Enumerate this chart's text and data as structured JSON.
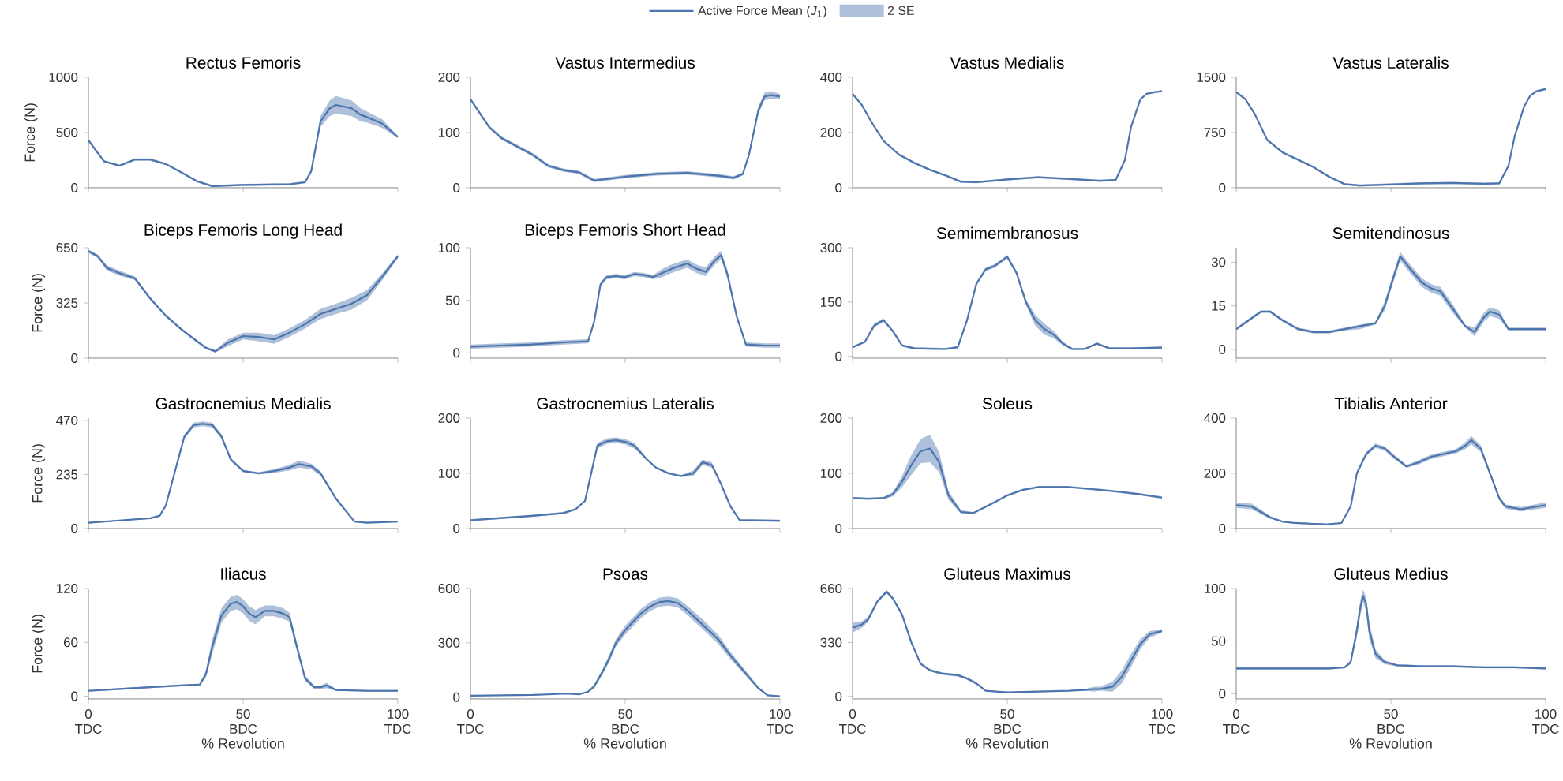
{
  "chart_data": [
    {
      "type": "line",
      "title": "Rectus Femoris",
      "ylabel": "Force (N)",
      "legend": "top",
      "annotations": [
        "2 SE"
      ],
      "xlim": [
        0,
        100
      ],
      "xticks": [
        0,
        50,
        100
      ],
      "ylim": [
        0,
        1000
      ],
      "yticks": [
        0,
        500,
        1000
      ],
      "tick_labels": "y",
      "series": [
        {
          "name": "Active Force Mean (*J*$_{1}$)",
          "color": "#4c74ad",
          "x": [
            0,
            5,
            10,
            15,
            20,
            25,
            30,
            35,
            40,
            45,
            50,
            55,
            60,
            65,
            70,
            72,
            75,
            78,
            80,
            85,
            88,
            90,
            95,
            100
          ],
          "values": [
            430,
            240,
            200,
            255,
            255,
            215,
            140,
            60,
            15,
            20,
            25,
            28,
            30,
            32,
            50,
            150,
            600,
            720,
            750,
            720,
            660,
            640,
            580,
            460
          ],
          "lower": [
            420,
            230,
            190,
            245,
            245,
            205,
            130,
            50,
            5,
            10,
            15,
            18,
            20,
            22,
            40,
            130,
            550,
            650,
            670,
            650,
            600,
            590,
            540,
            450
          ],
          "upper": [
            440,
            250,
            210,
            265,
            265,
            225,
            150,
            70,
            25,
            30,
            35,
            38,
            40,
            42,
            60,
            170,
            650,
            790,
            830,
            790,
            720,
            690,
            620,
            470
          ]
        }
      ]
    },
    {
      "type": "line",
      "title": "Vastus Intermedius",
      "xlim": [
        0,
        100
      ],
      "xticks": [
        0,
        50,
        100
      ],
      "ylim": [
        0,
        200
      ],
      "yticks": [
        0,
        100,
        200
      ],
      "tick_labels": "y",
      "series": [
        {
          "color": "#4c74ad",
          "x": [
            0,
            3,
            6,
            10,
            15,
            20,
            25,
            30,
            35,
            40,
            50,
            60,
            70,
            80,
            85,
            88,
            90,
            93,
            95,
            97,
            100
          ],
          "values": [
            160,
            135,
            110,
            90,
            75,
            60,
            40,
            32,
            28,
            13,
            20,
            25,
            27,
            22,
            18,
            25,
            60,
            140,
            165,
            168,
            165
          ],
          "lower": [
            157,
            132,
            107,
            87,
            72,
            57,
            37,
            29,
            25,
            10,
            17,
            22,
            24,
            19,
            15,
            22,
            55,
            133,
            158,
            161,
            160
          ],
          "upper": [
            163,
            138,
            113,
            93,
            78,
            63,
            43,
            35,
            31,
            16,
            23,
            28,
            30,
            25,
            21,
            28,
            65,
            147,
            172,
            175,
            170
          ]
        }
      ]
    },
    {
      "type": "line",
      "title": "Vastus Medialis",
      "xlim": [
        0,
        100
      ],
      "xticks": [
        0,
        50,
        100
      ],
      "ylim": [
        0,
        400
      ],
      "yticks": [
        0,
        200,
        400
      ],
      "tick_labels": "y",
      "series": [
        {
          "color": "#4c74ad",
          "x": [
            0,
            3,
            6,
            10,
            15,
            20,
            25,
            30,
            35,
            40,
            50,
            60,
            70,
            80,
            85,
            88,
            90,
            93,
            95,
            97,
            100
          ],
          "values": [
            340,
            300,
            240,
            170,
            120,
            90,
            65,
            45,
            22,
            20,
            30,
            38,
            32,
            25,
            28,
            100,
            220,
            320,
            340,
            345,
            350
          ],
          "lower": [
            336,
            296,
            236,
            166,
            116,
            86,
            61,
            41,
            18,
            16,
            26,
            34,
            28,
            21,
            24,
            96,
            216,
            316,
            336,
            341,
            346
          ],
          "upper": [
            344,
            304,
            244,
            174,
            124,
            94,
            69,
            49,
            26,
            24,
            34,
            42,
            36,
            29,
            32,
            104,
            224,
            324,
            344,
            349,
            354
          ]
        }
      ]
    },
    {
      "type": "line",
      "title": "Vastus Lateralis",
      "xlim": [
        0,
        100
      ],
      "xticks": [
        0,
        50,
        100
      ],
      "ylim": [
        0,
        1500
      ],
      "yticks": [
        0,
        750,
        1500
      ],
      "tick_labels": "y",
      "series": [
        {
          "color": "#4c74ad",
          "x": [
            0,
            3,
            6,
            10,
            15,
            20,
            25,
            30,
            35,
            40,
            50,
            60,
            70,
            80,
            85,
            88,
            90,
            93,
            95,
            97,
            100
          ],
          "values": [
            1300,
            1200,
            1000,
            650,
            480,
            380,
            280,
            150,
            50,
            30,
            45,
            60,
            65,
            55,
            60,
            300,
            700,
            1100,
            1250,
            1310,
            1340
          ],
          "lower": [
            1285,
            1185,
            985,
            635,
            465,
            365,
            265,
            135,
            35,
            15,
            30,
            45,
            50,
            40,
            45,
            285,
            685,
            1085,
            1235,
            1295,
            1325
          ],
          "upper": [
            1315,
            1215,
            1015,
            665,
            495,
            395,
            295,
            165,
            65,
            45,
            60,
            75,
            80,
            70,
            75,
            315,
            715,
            1115,
            1265,
            1325,
            1355
          ]
        }
      ]
    },
    {
      "type": "line",
      "title": "Biceps Femoris Long Head",
      "ylabel": "Force (N)",
      "xlim": [
        0,
        100
      ],
      "xticks": [
        0,
        50,
        100
      ],
      "ylim": [
        0,
        650
      ],
      "yticks": [
        0,
        325,
        650
      ],
      "tick_labels": "y",
      "series": [
        {
          "color": "#4c74ad",
          "x": [
            0,
            3,
            6,
            10,
            15,
            20,
            25,
            30,
            35,
            38,
            41,
            45,
            50,
            55,
            60,
            65,
            70,
            75,
            80,
            85,
            90,
            95,
            100
          ],
          "values": [
            630,
            600,
            530,
            500,
            470,
            350,
            250,
            170,
            100,
            60,
            40,
            90,
            130,
            125,
            110,
            150,
            200,
            260,
            290,
            320,
            370,
            480,
            600
          ],
          "lower": [
            620,
            590,
            515,
            485,
            460,
            340,
            242,
            162,
            92,
            52,
            32,
            70,
            110,
            100,
            85,
            125,
            175,
            230,
            260,
            285,
            340,
            460,
            590
          ],
          "upper": [
            640,
            610,
            545,
            515,
            480,
            360,
            258,
            178,
            108,
            68,
            48,
            110,
            150,
            150,
            135,
            175,
            225,
            290,
            320,
            355,
            400,
            500,
            610
          ]
        }
      ]
    },
    {
      "type": "line",
      "title": "Biceps Femoris Short Head",
      "xlim": [
        0,
        100
      ],
      "xticks": [
        0,
        50,
        100
      ],
      "ylim": [
        -5,
        100
      ],
      "yticks": [
        0,
        50,
        100
      ],
      "tick_labels": "y",
      "series": [
        {
          "color": "#4c74ad",
          "x": [
            0,
            10,
            20,
            30,
            38,
            40,
            42,
            44,
            47,
            50,
            53,
            56,
            59,
            62,
            65,
            70,
            73,
            76,
            79,
            81,
            83,
            86,
            89,
            95,
            100
          ],
          "values": [
            6,
            7,
            8,
            10,
            11,
            30,
            65,
            72,
            73,
            72,
            75,
            74,
            72,
            76,
            80,
            85,
            80,
            77,
            88,
            93,
            75,
            35,
            8,
            7,
            7
          ],
          "lower": [
            4,
            5,
            6,
            8,
            9,
            28,
            63,
            70,
            71,
            70,
            73,
            72,
            70,
            72,
            76,
            81,
            76,
            73,
            84,
            89,
            71,
            33,
            6,
            5,
            5
          ],
          "upper": [
            8,
            9,
            10,
            12,
            13,
            32,
            67,
            74,
            75,
            74,
            77,
            76,
            74,
            80,
            84,
            89,
            84,
            81,
            92,
            97,
            79,
            37,
            10,
            9,
            9
          ]
        }
      ]
    },
    {
      "type": "line",
      "title": "Semimembranosus",
      "xlim": [
        0,
        100
      ],
      "xticks": [
        0,
        50,
        100
      ],
      "ylim": [
        -5,
        300
      ],
      "yticks": [
        0,
        150,
        300
      ],
      "tick_labels": "y",
      "series": [
        {
          "color": "#4c74ad",
          "x": [
            0,
            4,
            7,
            10,
            13,
            16,
            20,
            30,
            34,
            37,
            40,
            43,
            46,
            50,
            53,
            56,
            59,
            62,
            65,
            68,
            71,
            75,
            79,
            83,
            90,
            100
          ],
          "values": [
            25,
            40,
            85,
            100,
            70,
            30,
            22,
            20,
            25,
            100,
            200,
            240,
            250,
            275,
            230,
            150,
            100,
            75,
            60,
            35,
            20,
            20,
            35,
            22,
            22,
            24
          ],
          "lower": [
            22,
            37,
            80,
            95,
            67,
            27,
            19,
            17,
            22,
            95,
            195,
            235,
            245,
            270,
            225,
            142,
            85,
            60,
            50,
            30,
            17,
            17,
            32,
            19,
            19,
            21
          ],
          "upper": [
            28,
            43,
            90,
            105,
            73,
            33,
            25,
            23,
            28,
            105,
            205,
            245,
            255,
            280,
            235,
            158,
            115,
            90,
            70,
            40,
            23,
            23,
            38,
            25,
            25,
            27
          ]
        }
      ]
    },
    {
      "type": "line",
      "title": "Semitendinosus",
      "xlim": [
        0,
        100
      ],
      "xticks": [
        0,
        50,
        100
      ],
      "ylim": [
        -3,
        35
      ],
      "yticks": [
        0,
        15,
        30
      ],
      "tick_labels": "y",
      "series": [
        {
          "color": "#4c74ad",
          "x": [
            0,
            4,
            8,
            11,
            15,
            20,
            25,
            30,
            35,
            40,
            45,
            48,
            50,
            53,
            56,
            60,
            63,
            66,
            70,
            74,
            77,
            80,
            82,
            85,
            88,
            100
          ],
          "values": [
            7,
            10,
            13,
            13,
            10,
            7,
            6,
            6,
            7,
            8,
            9,
            15,
            22,
            32,
            28,
            23,
            21,
            20,
            14,
            8,
            6,
            11,
            13,
            12,
            7,
            7
          ],
          "lower": [
            6.5,
            9.5,
            12.5,
            12.5,
            9.5,
            6.5,
            5.5,
            5.5,
            6.5,
            7,
            8.5,
            13.5,
            20.5,
            30.5,
            26.5,
            21.5,
            19.5,
            18.5,
            12.5,
            7.5,
            4.5,
            9.5,
            11.5,
            10.5,
            6.5,
            6.5
          ],
          "upper": [
            7.5,
            10.5,
            13.5,
            13.5,
            10.5,
            7.5,
            6.5,
            6.5,
            7.5,
            8.5,
            9.5,
            16.5,
            23.5,
            33.5,
            29.5,
            24.5,
            22.5,
            21.5,
            15.5,
            8.5,
            7.5,
            12.5,
            14.5,
            13.5,
            7.5,
            7.5
          ]
        }
      ]
    },
    {
      "type": "line",
      "title": "Gastrocnemius Medialis",
      "ylabel": "Force (N)",
      "xlim": [
        0,
        100
      ],
      "xticks": [
        0,
        50,
        100
      ],
      "ylim": [
        0,
        480
      ],
      "yticks": [
        0,
        235,
        470
      ],
      "tick_labels": "y",
      "series": [
        {
          "color": "#4c74ad",
          "x": [
            0,
            10,
            20,
            23,
            25,
            28,
            31,
            34,
            37,
            40,
            43,
            46,
            50,
            55,
            60,
            65,
            68,
            72,
            75,
            80,
            86,
            90,
            100
          ],
          "values": [
            25,
            35,
            45,
            55,
            100,
            250,
            400,
            450,
            455,
            450,
            400,
            300,
            250,
            240,
            250,
            265,
            280,
            270,
            240,
            130,
            30,
            25,
            30
          ],
          "lower": [
            22,
            32,
            42,
            52,
            95,
            242,
            390,
            440,
            445,
            440,
            390,
            292,
            245,
            235,
            242,
            253,
            265,
            258,
            230,
            125,
            27,
            22,
            27
          ],
          "upper": [
            28,
            38,
            48,
            58,
            105,
            258,
            410,
            460,
            465,
            460,
            410,
            308,
            255,
            245,
            258,
            277,
            295,
            282,
            250,
            135,
            33,
            28,
            33
          ]
        }
      ]
    },
    {
      "type": "line",
      "title": "Gastrocnemius Lateralis",
      "xlim": [
        0,
        100
      ],
      "xticks": [
        0,
        50,
        100
      ],
      "ylim": [
        0,
        200
      ],
      "yticks": [
        0,
        100,
        200
      ],
      "tick_labels": "y",
      "series": [
        {
          "color": "#4c74ad",
          "x": [
            0,
            10,
            20,
            30,
            34,
            37,
            39,
            41,
            44,
            47,
            50,
            53,
            57,
            60,
            64,
            68,
            72,
            75,
            78,
            81,
            84,
            87,
            100
          ],
          "values": [
            15,
            19,
            23,
            28,
            35,
            50,
            100,
            150,
            158,
            160,
            157,
            150,
            125,
            110,
            100,
            95,
            100,
            120,
            115,
            80,
            40,
            15,
            14
          ],
          "lower": [
            13,
            17,
            21,
            26,
            33,
            48,
            95,
            145,
            153,
            155,
            152,
            145,
            123,
            108,
            98,
            93,
            95,
            115,
            110,
            78,
            38,
            13,
            12
          ],
          "upper": [
            17,
            21,
            25,
            30,
            37,
            52,
            105,
            155,
            163,
            165,
            162,
            155,
            127,
            112,
            102,
            97,
            105,
            125,
            120,
            82,
            42,
            17,
            16
          ]
        }
      ]
    },
    {
      "type": "line",
      "title": "Soleus",
      "xlim": [
        0,
        100
      ],
      "xticks": [
        0,
        50,
        100
      ],
      "ylim": [
        0,
        200
      ],
      "yticks": [
        0,
        100,
        200
      ],
      "tick_labels": "y",
      "series": [
        {
          "color": "#4c74ad",
          "x": [
            0,
            5,
            10,
            13,
            16,
            19,
            22,
            25,
            28,
            31,
            35,
            39,
            45,
            50,
            55,
            60,
            70,
            80,
            87,
            93,
            100
          ],
          "values": [
            55,
            54,
            55,
            62,
            85,
            115,
            140,
            145,
            120,
            60,
            30,
            28,
            45,
            60,
            70,
            75,
            75,
            70,
            66,
            62,
            56
          ],
          "lower": [
            53,
            52,
            53,
            58,
            75,
            97,
            118,
            120,
            102,
            52,
            27,
            26,
            43,
            58,
            68,
            73,
            73,
            68,
            64,
            60,
            54
          ],
          "upper": [
            57,
            56,
            57,
            66,
            95,
            133,
            162,
            170,
            138,
            68,
            33,
            30,
            47,
            62,
            72,
            77,
            77,
            72,
            68,
            64,
            58
          ]
        }
      ]
    },
    {
      "type": "line",
      "title": "Tibialis Anterior",
      "xlim": [
        0,
        100
      ],
      "xticks": [
        0,
        50,
        100
      ],
      "ylim": [
        0,
        400
      ],
      "yticks": [
        0,
        200,
        400
      ],
      "tick_labels": "y",
      "series": [
        {
          "color": "#4c74ad",
          "x": [
            0,
            5,
            8,
            11,
            15,
            19,
            25,
            29,
            34,
            37,
            39,
            42,
            45,
            48,
            51,
            55,
            59,
            63,
            67,
            71,
            74,
            76,
            79,
            82,
            85,
            87,
            92,
            100
          ],
          "values": [
            85,
            80,
            60,
            40,
            25,
            20,
            17,
            15,
            20,
            80,
            200,
            270,
            300,
            290,
            260,
            225,
            240,
            260,
            270,
            280,
            300,
            320,
            290,
            200,
            110,
            80,
            70,
            85
          ],
          "lower": [
            75,
            70,
            52,
            35,
            22,
            17,
            14,
            12,
            17,
            75,
            192,
            262,
            292,
            282,
            252,
            220,
            232,
            252,
            262,
            272,
            288,
            305,
            278,
            192,
            102,
            72,
            62,
            75
          ],
          "upper": [
            95,
            90,
            68,
            45,
            28,
            23,
            20,
            18,
            23,
            85,
            208,
            278,
            308,
            298,
            268,
            230,
            248,
            268,
            278,
            288,
            312,
            335,
            302,
            208,
            118,
            88,
            78,
            95
          ]
        }
      ]
    },
    {
      "type": "line",
      "title": "Iliacus",
      "ylabel": "Force (N)",
      "xlabel": "% Revolution",
      "xlim": [
        0,
        100
      ],
      "xticks": [
        {
          "value": 0,
          "label": "0 TDC"
        },
        {
          "value": 50,
          "label": "50 BDC"
        },
        {
          "value": 100,
          "label": "100 TDC"
        }
      ],
      "ylim": [
        -3,
        120
      ],
      "yticks": [
        0,
        60,
        120
      ],
      "series": [
        {
          "color": "#4c74ad",
          "x": [
            0,
            10,
            20,
            30,
            36,
            38,
            40,
            43,
            46,
            48,
            50,
            52,
            54,
            57,
            60,
            63,
            65,
            67,
            70,
            73,
            75,
            77,
            80,
            90,
            100
          ],
          "values": [
            6,
            8,
            10,
            12,
            13,
            25,
            55,
            90,
            103,
            105,
            100,
            92,
            88,
            95,
            95,
            92,
            88,
            60,
            20,
            10,
            10,
            12,
            7,
            6,
            6
          ],
          "lower": [
            5,
            7,
            9,
            11,
            12,
            21,
            47,
            82,
            95,
            97,
            92,
            84,
            80,
            89,
            89,
            86,
            83,
            55,
            17,
            8,
            8,
            9,
            6,
            5,
            5
          ],
          "upper": [
            7,
            9,
            11,
            13,
            14,
            29,
            63,
            98,
            111,
            113,
            108,
            100,
            96,
            101,
            101,
            98,
            93,
            65,
            23,
            12,
            12,
            15,
            8,
            7,
            7
          ]
        }
      ]
    },
    {
      "type": "line",
      "title": "Psoas",
      "xlabel": "% Revolution",
      "xlim": [
        0,
        100
      ],
      "xticks": [
        {
          "value": 0,
          "label": "0 TDC"
        },
        {
          "value": 50,
          "label": "50 BDC"
        },
        {
          "value": 100,
          "label": "100 TDC"
        }
      ],
      "ylim": [
        -10,
        600
      ],
      "yticks": [
        0,
        300,
        600
      ],
      "series": [
        {
          "color": "#4c74ad",
          "x": [
            0,
            10,
            20,
            25,
            31,
            35,
            38,
            40,
            43,
            45,
            47,
            50,
            55,
            58,
            61,
            64,
            67,
            70,
            75,
            80,
            84,
            88,
            90,
            93,
            96,
            100
          ],
          "values": [
            8,
            10,
            12,
            15,
            20,
            15,
            30,
            60,
            150,
            220,
            300,
            370,
            460,
            500,
            525,
            530,
            520,
            480,
            400,
            320,
            230,
            150,
            110,
            50,
            10,
            5
          ],
          "lower": [
            6,
            8,
            10,
            13,
            17,
            12,
            25,
            50,
            135,
            200,
            280,
            345,
            435,
            475,
            500,
            505,
            495,
            455,
            375,
            295,
            210,
            135,
            98,
            42,
            7,
            3
          ],
          "upper": [
            10,
            12,
            14,
            17,
            23,
            18,
            35,
            70,
            165,
            240,
            320,
            395,
            485,
            525,
            550,
            555,
            545,
            505,
            430,
            345,
            250,
            165,
            122,
            58,
            13,
            7
          ]
        }
      ]
    },
    {
      "type": "line",
      "title": "Gluteus Maximus",
      "xlabel": "% Revolution",
      "xlim": [
        0,
        100
      ],
      "xticks": [
        {
          "value": 0,
          "label": "0 TDC"
        },
        {
          "value": 50,
          "label": "50 BDC"
        },
        {
          "value": 100,
          "label": "100 TDC"
        }
      ],
      "ylim": [
        -15,
        660
      ],
      "yticks": [
        0,
        330,
        660
      ],
      "series": [
        {
          "color": "#4c74ad",
          "x": [
            0,
            3,
            5,
            8,
            11,
            13,
            16,
            19,
            22,
            25,
            29,
            34,
            37,
            40,
            43,
            50,
            60,
            70,
            75,
            78,
            80,
            84,
            87,
            90,
            93,
            96,
            100
          ],
          "values": [
            420,
            440,
            470,
            580,
            640,
            600,
            500,
            330,
            200,
            160,
            140,
            130,
            110,
            80,
            35,
            25,
            30,
            35,
            40,
            45,
            45,
            60,
            120,
            220,
            320,
            380,
            400
          ],
          "lower": [
            390,
            420,
            455,
            570,
            630,
            590,
            490,
            320,
            192,
            152,
            132,
            122,
            102,
            72,
            30,
            22,
            27,
            32,
            35,
            30,
            35,
            30,
            80,
            180,
            290,
            360,
            390
          ],
          "upper": [
            450,
            460,
            485,
            590,
            650,
            610,
            510,
            340,
            208,
            168,
            148,
            138,
            118,
            88,
            40,
            28,
            33,
            38,
            45,
            60,
            60,
            90,
            160,
            260,
            350,
            400,
            410
          ]
        }
      ]
    },
    {
      "type": "line",
      "title": "Gluteus Medius",
      "xlabel": "% Revolution",
      "xlim": [
        0,
        100
      ],
      "xticks": [
        {
          "value": 0,
          "label": "0 TDC"
        },
        {
          "value": 50,
          "label": "50 BDC"
        },
        {
          "value": 100,
          "label": "100 TDC"
        }
      ],
      "ylim": [
        -5,
        100
      ],
      "yticks": [
        0,
        50,
        100
      ],
      "series": [
        {
          "color": "#4c74ad",
          "x": [
            0,
            10,
            20,
            30,
            35,
            37,
            39,
            40,
            41,
            42,
            43,
            45,
            48,
            52,
            60,
            70,
            80,
            90,
            100
          ],
          "values": [
            24,
            24,
            24,
            24,
            25,
            30,
            60,
            80,
            93,
            85,
            60,
            38,
            30,
            27,
            26,
            26,
            25,
            25,
            24
          ],
          "lower": [
            23,
            23,
            23,
            23,
            24,
            28,
            54,
            73,
            87,
            78,
            52,
            34,
            28,
            26,
            25,
            25,
            24,
            24,
            23
          ],
          "upper": [
            25,
            25,
            25,
            25,
            26,
            32,
            66,
            87,
            99,
            92,
            68,
            42,
            32,
            28,
            27,
            27,
            26,
            26,
            25
          ]
        }
      ]
    }
  ]
}
